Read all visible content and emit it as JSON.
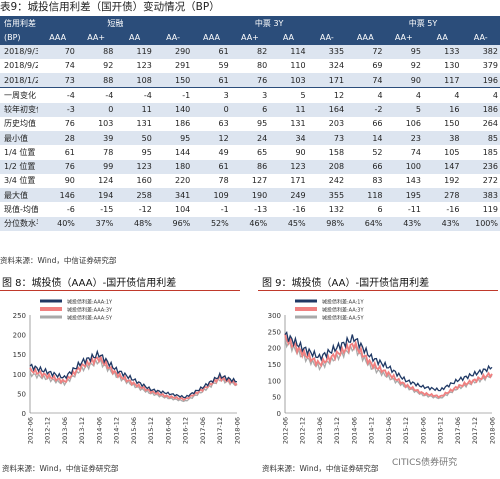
{
  "table_title": "表9：城投信用利差（国开债）变动情况（BP）",
  "header": {
    "row1": [
      "信用利差",
      "短融",
      "中票 3Y",
      "中票 5Y"
    ],
    "row2": [
      "(BP)",
      "AAA",
      "AA+",
      "AA",
      "AA-",
      "AAA",
      "AA+",
      "AA",
      "AA-",
      "AAA",
      "AA+",
      "AA",
      "AA-"
    ]
  },
  "rows": [
    {
      "label": "2018/9/30",
      "values": [
        "70",
        "88",
        "119",
        "290",
        "61",
        "82",
        "114",
        "335",
        "72",
        "95",
        "133",
        "382"
      ]
    },
    {
      "label": "2018/9/25",
      "values": [
        "74",
        "92",
        "123",
        "291",
        "59",
        "80",
        "110",
        "324",
        "69",
        "92",
        "130",
        "379"
      ]
    },
    {
      "label": "2018/1/2",
      "values": [
        "73",
        "88",
        "108",
        "150",
        "61",
        "76",
        "103",
        "171",
        "74",
        "90",
        "117",
        "196"
      ]
    },
    {
      "label": "一周变化",
      "values": [
        "-4",
        "-4",
        "-4",
        "-1",
        "3",
        "3",
        "5",
        "12",
        "4",
        "4",
        "4",
        "4"
      ]
    },
    {
      "label": "较年初变化",
      "values": [
        "-3",
        "0",
        "11",
        "140",
        "0",
        "6",
        "11",
        "164",
        "-2",
        "5",
        "16",
        "186"
      ]
    },
    {
      "label": "历史均值",
      "values": [
        "76",
        "103",
        "131",
        "186",
        "63",
        "95",
        "131",
        "203",
        "66",
        "106",
        "150",
        "264"
      ]
    },
    {
      "label": "最小值",
      "values": [
        "28",
        "39",
        "50",
        "95",
        "12",
        "24",
        "34",
        "73",
        "14",
        "23",
        "38",
        "85"
      ]
    },
    {
      "label": "1/4 位置",
      "values": [
        "61",
        "78",
        "95",
        "144",
        "49",
        "65",
        "90",
        "158",
        "52",
        "74",
        "105",
        "185"
      ]
    },
    {
      "label": "1/2 位置",
      "values": [
        "76",
        "99",
        "123",
        "180",
        "61",
        "86",
        "123",
        "208",
        "66",
        "100",
        "147",
        "236"
      ]
    },
    {
      "label": "3/4 位置",
      "values": [
        "90",
        "124",
        "160",
        "220",
        "78",
        "127",
        "171",
        "242",
        "83",
        "143",
        "192",
        "272"
      ]
    },
    {
      "label": "最大值",
      "values": [
        "146",
        "194",
        "258",
        "341",
        "109",
        "190",
        "249",
        "355",
        "118",
        "195",
        "278",
        "383"
      ]
    },
    {
      "label": "现值-均值",
      "values": [
        "-6",
        "-15",
        "-12",
        "104",
        "-1",
        "-13",
        "-16",
        "132",
        "6",
        "-11",
        "-16",
        "119"
      ]
    },
    {
      "label": "分位数水平",
      "values": [
        "40%",
        "37%",
        "48%",
        "96%",
        "52%",
        "46%",
        "45%",
        "98%",
        "64%",
        "43%",
        "43%",
        "100%"
      ]
    }
  ],
  "table_source": "资料来源：Wind，中信证券研究部",
  "figures": [
    {
      "title": "图 8：城投债（AAA）-国开债信用利差",
      "source": "资料来源：Wind，中信证券研究部",
      "chart_data": {
        "type": "line",
        "x": [
          "2012-06",
          "2012-12",
          "2013-06",
          "2013-12",
          "2014-06",
          "2014-12",
          "2015-06",
          "2015-12",
          "2016-06",
          "2016-12",
          "2017-06",
          "2017-12",
          "2018-06"
        ],
        "ylim": [
          0,
          250
        ],
        "yticks": [
          0,
          50,
          100,
          150,
          200,
          250
        ],
        "grid": false,
        "legend_position": "top",
        "series": [
          {
            "name": "城投债利差:AAA:1Y",
            "color": "#1f3864",
            "values": [
              120,
              105,
              90,
              130,
              150,
              110,
              85,
              60,
              50,
              40,
              65,
              95,
              80
            ]
          },
          {
            "name": "城投债利差:AAA:3Y",
            "color": "#f08080",
            "values": [
              110,
              95,
              80,
              120,
              140,
              100,
              75,
              55,
              42,
              35,
              60,
              90,
              75
            ]
          },
          {
            "name": "城投债利差:AAA:5Y",
            "color": "#a9a9a9",
            "values": [
              100,
              88,
              75,
              112,
              132,
              95,
              70,
              50,
              38,
              30,
              55,
              85,
              72
            ]
          }
        ]
      }
    },
    {
      "title": "图 9：城投债（AA）-国开债信用利差",
      "source": "资料来源：Wind，中信证券研究部",
      "chart_data": {
        "type": "line",
        "x": [
          "2012-06",
          "2012-12",
          "2013-06",
          "2013-12",
          "2014-06",
          "2014-12",
          "2015-06",
          "2015-12",
          "2016-06",
          "2016-12",
          "2017-06",
          "2017-12",
          "2018-06"
        ],
        "ylim": [
          0,
          300
        ],
        "yticks": [
          0,
          50,
          100,
          150,
          200,
          250,
          300
        ],
        "grid": false,
        "legend_position": "top",
        "series": [
          {
            "name": "城投债利差:AA:1Y",
            "color": "#1f3864",
            "values": [
              240,
              200,
              170,
              200,
              230,
              170,
              140,
              100,
              80,
              70,
              100,
              120,
              140
            ]
          },
          {
            "name": "城投债利差:AA:3Y",
            "color": "#f08080",
            "values": [
              230,
              185,
              150,
              180,
              210,
              150,
              120,
              85,
              60,
              50,
              80,
              100,
              120
            ]
          },
          {
            "name": "城投债利差:AA:5Y",
            "color": "#a9a9a9",
            "values": [
              220,
              175,
              140,
              170,
              200,
              140,
              110,
              80,
              55,
              45,
              75,
              95,
              115
            ]
          }
        ]
      }
    }
  ],
  "watermark": "CITICS债券研究"
}
